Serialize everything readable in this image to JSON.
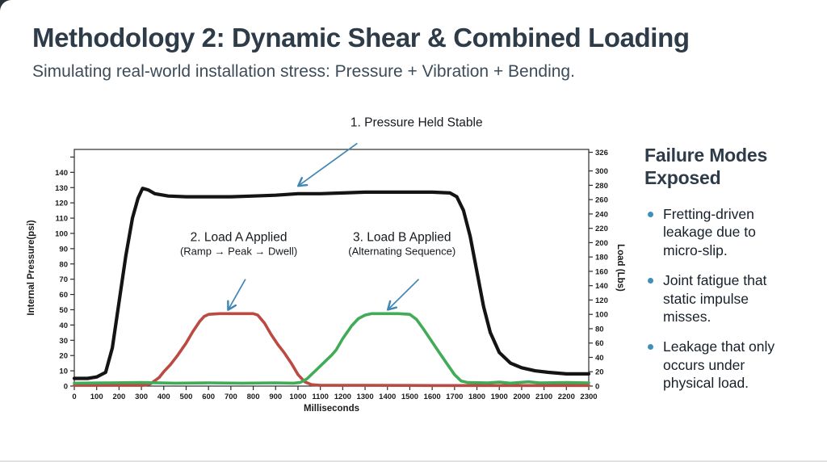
{
  "slide": {
    "title": "Methodology 2: Dynamic Shear & Combined Loading",
    "subtitle": "Simulating real-world installation stress: Pressure + Vibration + Bending."
  },
  "theme": {
    "title_color": "#2e3b48",
    "subtitle_color": "#3e4c59",
    "text_color": "#17202a",
    "bullet_color": "#3e8fbb",
    "background": "#ffffff",
    "corner_wedge_color": "#2a323c"
  },
  "sidebar": {
    "heading": "Failure Modes Exposed",
    "items": [
      {
        "text": "Fretting-driven leakage due to micro-slip."
      },
      {
        "text": "Joint fatigue that static impulse misses."
      },
      {
        "text": "Leakage that only occurs under physical load."
      }
    ]
  },
  "chart_data": {
    "type": "line",
    "xlabel": "Milliseconds",
    "ylabel_left": "Internal Pressure(psi)",
    "ylabel_right": "Load (Lbs)",
    "xlim": [
      0,
      2300
    ],
    "left_ylim": [
      0,
      155
    ],
    "right_ylim": [
      0,
      330
    ],
    "grid": false,
    "x_ticks": [
      0,
      100,
      200,
      300,
      400,
      500,
      600,
      700,
      800,
      900,
      1000,
      1100,
      1200,
      1300,
      1400,
      1500,
      1600,
      1700,
      1800,
      1900,
      2000,
      2100,
      2200,
      2300
    ],
    "left_ticks": [
      0,
      10,
      20,
      30,
      40,
      50,
      60,
      70,
      80,
      90,
      100,
      110,
      120,
      130,
      140
    ],
    "left_minor_ticks": [
      150
    ],
    "right_ticks": [
      0,
      20,
      40,
      60,
      80,
      100,
      120,
      140,
      160,
      180,
      200,
      220,
      240,
      260,
      280,
      300,
      326
    ],
    "colors": {
      "pressure": "#141414",
      "load_a": "#bb4a42",
      "load_b": "#41ab58",
      "annotation_arrow": "#4187b5",
      "axis": "#2b2b2b",
      "tick_text": "#1a1a1a"
    },
    "series": [
      {
        "name": "Internal Pressure",
        "axis": "left",
        "color_key": "pressure",
        "width": 4.2,
        "points": [
          [
            0,
            5
          ],
          [
            60,
            5
          ],
          [
            100,
            6
          ],
          [
            140,
            9
          ],
          [
            170,
            25
          ],
          [
            200,
            55
          ],
          [
            230,
            85
          ],
          [
            260,
            110
          ],
          [
            285,
            123
          ],
          [
            305,
            129.5
          ],
          [
            330,
            128.5
          ],
          [
            360,
            126
          ],
          [
            420,
            124.5
          ],
          [
            500,
            124
          ],
          [
            600,
            124
          ],
          [
            700,
            124
          ],
          [
            800,
            124.5
          ],
          [
            900,
            125
          ],
          [
            1000,
            126
          ],
          [
            1100,
            126
          ],
          [
            1200,
            126.5
          ],
          [
            1300,
            127
          ],
          [
            1450,
            127
          ],
          [
            1600,
            127
          ],
          [
            1680,
            126.5
          ],
          [
            1710,
            124
          ],
          [
            1740,
            115
          ],
          [
            1770,
            98
          ],
          [
            1800,
            75
          ],
          [
            1830,
            52
          ],
          [
            1860,
            35
          ],
          [
            1900,
            22
          ],
          [
            1950,
            15
          ],
          [
            2000,
            12
          ],
          [
            2060,
            10
          ],
          [
            2120,
            9
          ],
          [
            2200,
            8
          ],
          [
            2300,
            8
          ]
        ]
      },
      {
        "name": "Load A",
        "axis": "right",
        "color_key": "load_a",
        "width": 3.6,
        "points": [
          [
            0,
            1
          ],
          [
            200,
            1
          ],
          [
            310,
            1
          ],
          [
            340,
            3
          ],
          [
            380,
            12
          ],
          [
            400,
            20
          ],
          [
            430,
            30
          ],
          [
            460,
            42
          ],
          [
            500,
            60
          ],
          [
            530,
            76
          ],
          [
            560,
            90
          ],
          [
            580,
            97
          ],
          [
            600,
            100
          ],
          [
            650,
            101
          ],
          [
            700,
            101
          ],
          [
            750,
            101
          ],
          [
            800,
            101
          ],
          [
            820,
            99
          ],
          [
            850,
            88
          ],
          [
            880,
            72
          ],
          [
            910,
            58
          ],
          [
            940,
            46
          ],
          [
            970,
            32
          ],
          [
            1000,
            16
          ],
          [
            1030,
            6
          ],
          [
            1060,
            2
          ],
          [
            1100,
            1
          ],
          [
            1300,
            1
          ],
          [
            1600,
            0.8
          ],
          [
            2000,
            0.8
          ],
          [
            2300,
            0.8
          ]
        ]
      },
      {
        "name": "Load B",
        "axis": "right",
        "color_key": "load_b",
        "width": 3.6,
        "points": [
          [
            0,
            4
          ],
          [
            150,
            4.5
          ],
          [
            300,
            5
          ],
          [
            450,
            4
          ],
          [
            600,
            4.5
          ],
          [
            750,
            4
          ],
          [
            900,
            4.5
          ],
          [
            980,
            4
          ],
          [
            1010,
            5
          ],
          [
            1040,
            10
          ],
          [
            1080,
            22
          ],
          [
            1120,
            34
          ],
          [
            1150,
            43
          ],
          [
            1170,
            50
          ],
          [
            1200,
            66
          ],
          [
            1240,
            84
          ],
          [
            1270,
            94
          ],
          [
            1300,
            99
          ],
          [
            1330,
            101
          ],
          [
            1400,
            101
          ],
          [
            1450,
            101
          ],
          [
            1500,
            100
          ],
          [
            1530,
            93
          ],
          [
            1560,
            80
          ],
          [
            1590,
            66
          ],
          [
            1620,
            52
          ],
          [
            1660,
            34
          ],
          [
            1700,
            16
          ],
          [
            1730,
            7
          ],
          [
            1760,
            5
          ],
          [
            1850,
            4.5
          ],
          [
            1900,
            5.5
          ],
          [
            1950,
            4
          ],
          [
            2030,
            6
          ],
          [
            2080,
            4.5
          ],
          [
            2200,
            5
          ],
          [
            2300,
            4.5
          ]
        ]
      }
    ],
    "annotations": [
      {
        "label": "1. Pressure Held Stable",
        "sub": "",
        "text_ms": 1530,
        "text_psi": 170,
        "arrow": {
          "from_ms": 1265,
          "from_psi": 159,
          "to_ms": 1005,
          "to_psi": 131.5
        }
      },
      {
        "label": "2. Load A Applied",
        "sub": "(Ramp → Peak → Dwell)",
        "text_ms": 735,
        "text_psi": 95,
        "arrow": {
          "from_ms": 765,
          "from_psi": 70,
          "to_ms": 690,
          "to_psi": 50.5
        }
      },
      {
        "label": "3. Load B Applied",
        "sub": "(Alternating Sequence)",
        "text_ms": 1465,
        "text_psi": 95,
        "arrow": {
          "from_ms": 1540,
          "from_psi": 70,
          "to_ms": 1405,
          "to_psi": 50.5
        }
      }
    ]
  }
}
